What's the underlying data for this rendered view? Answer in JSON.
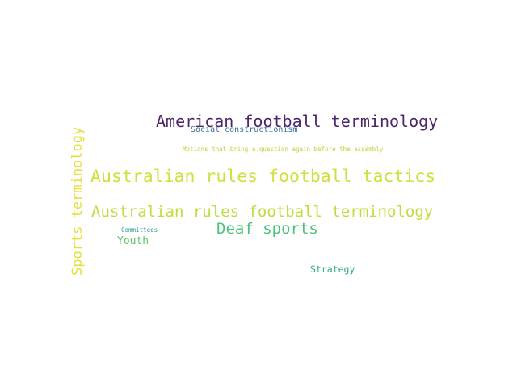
{
  "words": [
    {
      "id": "w-american",
      "text": "American football terminology",
      "color": "#4b2668"
    },
    {
      "id": "w-socialcons",
      "text": "Social constructionism",
      "color": "#3b6ea0"
    },
    {
      "id": "w-motions",
      "text": "Motions that bring a question again before the assembly",
      "color": "#c9cf3d"
    },
    {
      "id": "w-tactics",
      "text": "Australian rules football tactics",
      "color": "#cfe03a"
    },
    {
      "id": "w-terminology",
      "text": "Australian rules football terminology",
      "color": "#bede3e"
    },
    {
      "id": "w-deaf",
      "text": "Deaf sports",
      "color": "#4cc27a"
    },
    {
      "id": "w-committees",
      "text": "Committees",
      "color": "#2a9a8c"
    },
    {
      "id": "w-youth",
      "text": "Youth",
      "color": "#5cc56c"
    },
    {
      "id": "w-strategy",
      "text": "Strategy",
      "color": "#33a886"
    },
    {
      "id": "w-sports",
      "text": "Sports terminology",
      "color": "#e6de3a"
    }
  ]
}
